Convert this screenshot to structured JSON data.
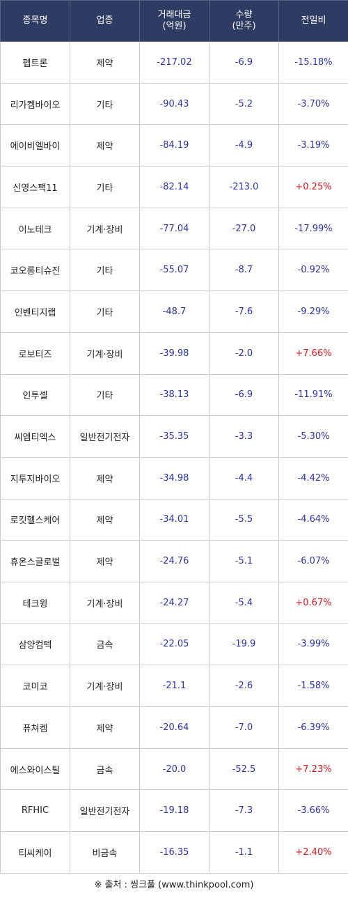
{
  "header": {
    "name": "종목명",
    "sector": "업종",
    "amount": "거래대금\n(억원)",
    "volume": "수량\n(만주)",
    "change": "전일비"
  },
  "rows": [
    {
      "name": "펩트론",
      "sector": "제약",
      "amount": "-217.02",
      "volume": "-6.9",
      "change": "-15.18%",
      "up": false
    },
    {
      "name": "리가켐바이오",
      "sector": "기타",
      "amount": "-90.43",
      "volume": "-5.2",
      "change": "-3.70%",
      "up": false
    },
    {
      "name": "에이비엘바이",
      "sector": "제약",
      "amount": "-84.19",
      "volume": "-4.9",
      "change": "-3.19%",
      "up": false
    },
    {
      "name": "신영스팩11",
      "sector": "기타",
      "amount": "-82.14",
      "volume": "-213.0",
      "change": "+0.25%",
      "up": true
    },
    {
      "name": "이노테크",
      "sector": "기계·장비",
      "amount": "-77.04",
      "volume": "-27.0",
      "change": "-17.99%",
      "up": false
    },
    {
      "name": "코오롱티슈진",
      "sector": "기타",
      "amount": "-55.07",
      "volume": "-8.7",
      "change": "-0.92%",
      "up": false
    },
    {
      "name": "인벤티지랩",
      "sector": "기타",
      "amount": "-48.7",
      "volume": "-7.6",
      "change": "-9.29%",
      "up": false
    },
    {
      "name": "로보티즈",
      "sector": "기계·장비",
      "amount": "-39.98",
      "volume": "-2.0",
      "change": "+7.66%",
      "up": true
    },
    {
      "name": "인투셀",
      "sector": "기타",
      "amount": "-38.13",
      "volume": "-6.9",
      "change": "-11.91%",
      "up": false
    },
    {
      "name": "씨엠티엑스",
      "sector": "일반전기전자",
      "amount": "-35.35",
      "volume": "-3.3",
      "change": "-5.30%",
      "up": false
    },
    {
      "name": "지투지바이오",
      "sector": "제약",
      "amount": "-34.98",
      "volume": "-4.4",
      "change": "-4.42%",
      "up": false
    },
    {
      "name": "로킷헬스케어",
      "sector": "제약",
      "amount": "-34.01",
      "volume": "-5.5",
      "change": "-4.64%",
      "up": false
    },
    {
      "name": "휴온스글로벌",
      "sector": "제약",
      "amount": "-24.76",
      "volume": "-5.1",
      "change": "-6.07%",
      "up": false
    },
    {
      "name": "테크윙",
      "sector": "기계·장비",
      "amount": "-24.27",
      "volume": "-5.4",
      "change": "+0.67%",
      "up": true
    },
    {
      "name": "삼양컴텍",
      "sector": "금속",
      "amount": "-22.05",
      "volume": "-19.9",
      "change": "-3.99%",
      "up": false
    },
    {
      "name": "코미코",
      "sector": "기계·장비",
      "amount": "-21.1",
      "volume": "-2.6",
      "change": "-1.58%",
      "up": false
    },
    {
      "name": "퓨쳐켐",
      "sector": "제약",
      "amount": "-20.64",
      "volume": "-7.0",
      "change": "-6.39%",
      "up": false
    },
    {
      "name": "에스와이스틸",
      "sector": "금속",
      "amount": "-20.0",
      "volume": "-52.5",
      "change": "+7.23%",
      "up": true
    },
    {
      "name": "RFHIC",
      "sector": "일반전기전자",
      "amount": "-19.18",
      "volume": "-7.3",
      "change": "-3.66%",
      "up": false
    },
    {
      "name": "티씨케이",
      "sector": "비금속",
      "amount": "-16.35",
      "volume": "-1.1",
      "change": "+2.40%",
      "up": true
    }
  ],
  "source": "※ 출처 : 씽크풀 (www.thinkpool.com)",
  "colors": {
    "header_bg": "#2e3b63",
    "negative": "#2a33a8",
    "positive": "#e0141f"
  }
}
